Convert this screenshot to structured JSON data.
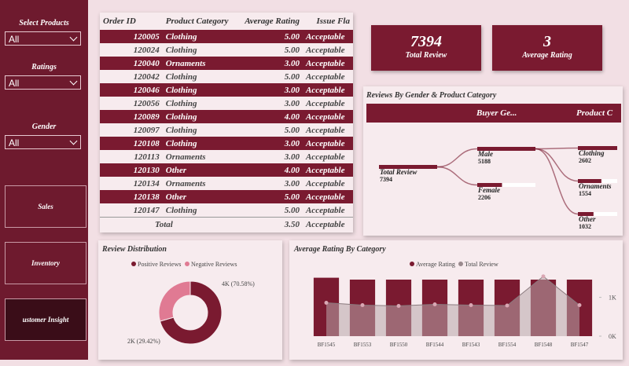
{
  "sidebar": {
    "filters": [
      {
        "label": "Select Products",
        "value": "All"
      },
      {
        "label": "Ratings",
        "value": "All"
      },
      {
        "label": "Gender",
        "value": "All"
      }
    ],
    "buttons": [
      "Sales",
      "Inventory",
      "ustomer Insight"
    ]
  },
  "table": {
    "columns": [
      "Order ID",
      "Product Category",
      "Average Rating",
      "Issue Fla"
    ],
    "rows": [
      [
        "120005",
        "Clothing",
        "5.00",
        "Acceptable"
      ],
      [
        "120024",
        "Clothing",
        "5.00",
        "Acceptable"
      ],
      [
        "120040",
        "Ornaments",
        "3.00",
        "Acceptable"
      ],
      [
        "120042",
        "Clothing",
        "5.00",
        "Acceptable"
      ],
      [
        "120046",
        "Clothing",
        "3.00",
        "Acceptable"
      ],
      [
        "120056",
        "Clothing",
        "3.00",
        "Acceptable"
      ],
      [
        "120089",
        "Clothing",
        "4.00",
        "Acceptable"
      ],
      [
        "120097",
        "Clothing",
        "5.00",
        "Acceptable"
      ],
      [
        "120108",
        "Clothing",
        "3.00",
        "Acceptable"
      ],
      [
        "120113",
        "Ornaments",
        "3.00",
        "Acceptable"
      ],
      [
        "120130",
        "Other",
        "4.00",
        "Acceptable"
      ],
      [
        "120134",
        "Ornaments",
        "3.00",
        "Acceptable"
      ],
      [
        "120138",
        "Other",
        "5.00",
        "Acceptable"
      ],
      [
        "120147",
        "Clothing",
        "5.00",
        "Acceptable"
      ]
    ],
    "total": [
      "Total",
      "3.50",
      "Acceptable"
    ]
  },
  "kpis": [
    {
      "value": "7394",
      "label": "Total Review"
    },
    {
      "value": "3",
      "label": "Average Rating"
    }
  ],
  "tree": {
    "title": "Reviews By Gender & Product Category",
    "levels": [
      "Buyer Ge...",
      "Product C"
    ],
    "root": {
      "label": "Total Review",
      "value": 7394
    },
    "gender": [
      {
        "label": "Male",
        "value": 5188
      },
      {
        "label": "Female",
        "value": 2206
      }
    ],
    "category": [
      {
        "label": "Clothing",
        "value": 2602
      },
      {
        "label": "Ornaments",
        "value": 1554
      },
      {
        "label": "Other",
        "value": 1032
      }
    ]
  },
  "chart_data": [
    {
      "type": "donut",
      "title": "Review Distribution",
      "categories": [
        "Positive Reviews",
        "Negative Reviews"
      ],
      "values": [
        70.58,
        29.42
      ],
      "value_labels": [
        "4K (70.58%)",
        "2K (29.42%)"
      ],
      "colors": [
        "#7a1a30",
        "#e07a93"
      ]
    },
    {
      "type": "combo",
      "title": "Average Rating By Category",
      "categories": [
        "BF1545",
        "BF1553",
        "BF1550",
        "BF1544",
        "BF1543",
        "BF1554",
        "BF1548",
        "BF1547"
      ],
      "series": [
        {
          "name": "Average Rating",
          "color": "#7a1a30",
          "values": [
            3.1,
            3.0,
            3.0,
            3.0,
            3.0,
            3.0,
            3.0,
            3.0
          ]
        },
        {
          "name": "Total Review",
          "color": "#9a8a8e",
          "axis": "y2",
          "values": [
            860,
            800,
            780,
            820,
            800,
            790,
            1540,
            800
          ]
        }
      ],
      "ylim": [
        0,
        3.5
      ],
      "y2lim": [
        0,
        1700
      ],
      "y2ticks": [
        {
          "value": 1000,
          "label": "1K"
        },
        {
          "value": 0,
          "label": "0K"
        }
      ]
    }
  ]
}
